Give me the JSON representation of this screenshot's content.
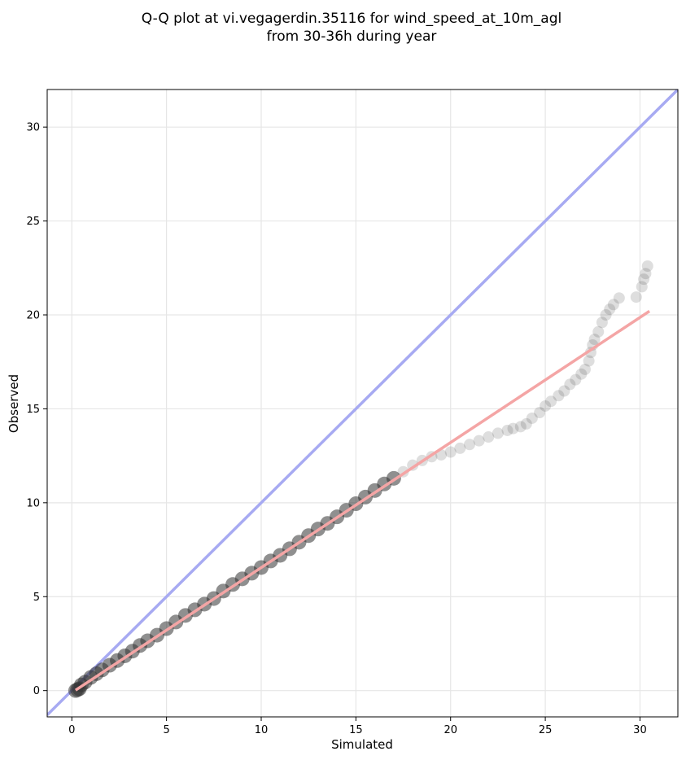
{
  "chart_data": {
    "type": "scatter",
    "title_lines": [
      "Q-Q plot at vi.vegagerdin.35116 for wind_speed_at_10m_agl",
      "from 30-36h during year"
    ],
    "xlabel": "Simulated",
    "ylabel": "Observed",
    "xlim": [
      -1.3,
      32
    ],
    "ylim": [
      -1.4,
      32
    ],
    "xticks": [
      0,
      5,
      10,
      15,
      20,
      25,
      30
    ],
    "yticks": [
      0,
      5,
      10,
      15,
      20,
      25,
      30
    ],
    "tick_labels_x": [
      "0",
      "5",
      "10",
      "15",
      "20",
      "25",
      "30"
    ],
    "tick_labels_y": [
      "0",
      "5",
      "10",
      "15",
      "20",
      "25",
      "30"
    ],
    "grid": true,
    "identity_line": {
      "color": "#a7aaf2",
      "x": [
        -1.3,
        32
      ],
      "y": [
        -1.3,
        32
      ]
    },
    "fit_line": {
      "color": "#f4a5a5",
      "x": [
        0.2,
        30.5
      ],
      "y": [
        0.02,
        20.2
      ]
    },
    "series": [
      {
        "color": "#333333",
        "x": [
          0.2,
          0.3,
          0.4,
          0.5,
          0.7,
          1.0,
          1.3,
          1.6,
          2.0,
          2.4,
          2.8,
          3.2,
          3.6,
          4.0,
          4.5,
          5.0,
          5.5,
          6.0,
          6.5,
          7.0,
          7.5,
          8.0,
          8.5,
          9.0,
          9.5,
          10.0,
          10.5,
          11.0,
          11.5,
          12.0,
          12.5,
          13.0,
          13.5,
          14.0,
          14.5,
          15.0,
          15.5,
          16.0,
          16.5,
          17.0,
          17.5,
          18.0,
          18.5,
          19.0,
          19.5,
          20.0,
          20.5,
          21.0,
          21.5,
          22.0,
          22.5,
          23.0,
          23.3,
          23.7,
          24.0,
          24.3,
          24.7,
          25.0,
          25.3,
          25.7,
          26.0,
          26.3,
          26.6,
          26.9,
          27.1,
          27.3,
          27.4,
          27.5,
          27.6,
          27.8,
          28.0,
          28.2,
          28.4,
          28.6,
          28.9,
          29.8,
          30.1,
          30.2,
          30.3,
          30.4
        ],
        "y": [
          0.0,
          0.05,
          0.1,
          0.3,
          0.45,
          0.7,
          0.9,
          1.1,
          1.35,
          1.6,
          1.85,
          2.1,
          2.4,
          2.65,
          2.95,
          3.3,
          3.65,
          4.0,
          4.3,
          4.6,
          4.9,
          5.3,
          5.65,
          5.95,
          6.25,
          6.55,
          6.9,
          7.2,
          7.55,
          7.9,
          8.25,
          8.6,
          8.9,
          9.25,
          9.6,
          9.95,
          10.3,
          10.65,
          11.0,
          11.3,
          11.65,
          12.0,
          12.25,
          12.45,
          12.55,
          12.7,
          12.9,
          13.1,
          13.3,
          13.5,
          13.7,
          13.85,
          13.95,
          14.05,
          14.2,
          14.5,
          14.8,
          15.15,
          15.4,
          15.7,
          15.95,
          16.3,
          16.55,
          16.85,
          17.1,
          17.55,
          18.0,
          18.4,
          18.7,
          19.1,
          19.6,
          20.0,
          20.3,
          20.55,
          20.9,
          20.95,
          21.5,
          21.9,
          22.2,
          22.6
        ]
      }
    ]
  }
}
